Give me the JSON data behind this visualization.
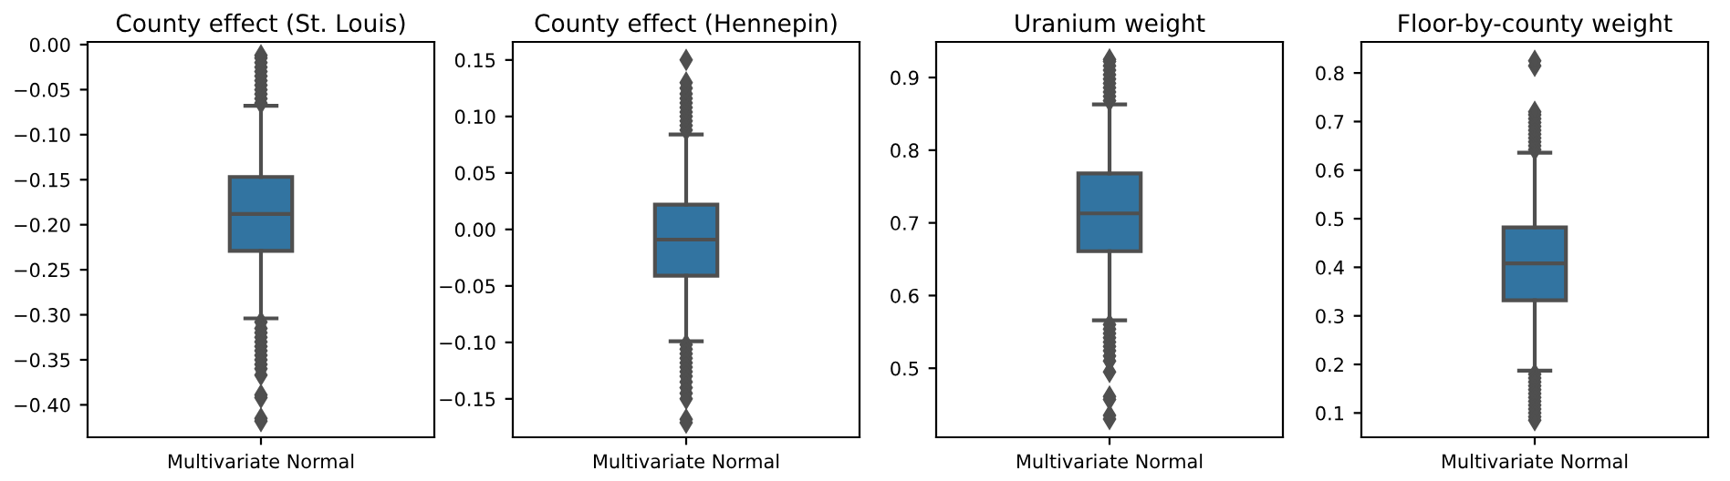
{
  "chart_data": [
    {
      "type": "box",
      "title": "County effect (St. Louis)",
      "categories": [
        "Multivariate Normal"
      ],
      "color": "#3274a1",
      "ylim": [
        -0.436,
        0.003
      ],
      "yticks": [
        {
          "value": 0,
          "label": "0.00"
        },
        {
          "value": -0.05,
          "label": "−0.05"
        },
        {
          "value": -0.1,
          "label": "−0.10"
        },
        {
          "value": -0.15,
          "label": "−0.15"
        },
        {
          "value": -0.2,
          "label": "−0.20"
        },
        {
          "value": -0.25,
          "label": "−0.25"
        },
        {
          "value": -0.3,
          "label": "−0.30"
        },
        {
          "value": -0.35,
          "label": "−0.35"
        },
        {
          "value": -0.4,
          "label": "−0.40"
        }
      ],
      "boxes": [
        {
          "low": -0.304,
          "q1": -0.229,
          "median": -0.188,
          "q3": -0.147,
          "high": -0.068,
          "outliers": [
            -0.065,
            -0.06,
            -0.055,
            -0.05,
            -0.045,
            -0.04,
            -0.035,
            -0.03,
            -0.025,
            -0.02,
            -0.015,
            -0.012,
            -0.308,
            -0.315,
            -0.32,
            -0.325,
            -0.33,
            -0.335,
            -0.34,
            -0.345,
            -0.35,
            -0.355,
            -0.36,
            -0.367,
            -0.389,
            -0.392,
            -0.415,
            -0.418
          ]
        }
      ]
    },
    {
      "type": "box",
      "title": "County effect (Hennepin)",
      "categories": [
        "Multivariate Normal"
      ],
      "color": "#3274a1",
      "ylim": [
        -0.184,
        0.166
      ],
      "yticks": [
        {
          "value": 0.15,
          "label": "0.15"
        },
        {
          "value": 0.1,
          "label": "0.10"
        },
        {
          "value": 0.05,
          "label": "0.05"
        },
        {
          "value": 0,
          "label": "0.00"
        },
        {
          "value": -0.05,
          "label": "−0.05"
        },
        {
          "value": -0.1,
          "label": "−0.10"
        },
        {
          "value": -0.15,
          "label": "−0.15"
        }
      ],
      "boxes": [
        {
          "low": -0.099,
          "q1": -0.041,
          "median": -0.009,
          "q3": 0.022,
          "high": 0.084,
          "outliers": [
            0.088,
            0.092,
            0.096,
            0.1,
            0.104,
            0.108,
            0.112,
            0.116,
            0.12,
            0.125,
            0.13,
            0.15,
            -0.102,
            -0.106,
            -0.11,
            -0.114,
            -0.118,
            -0.122,
            -0.126,
            -0.13,
            -0.135,
            -0.14,
            -0.145,
            -0.15,
            -0.168,
            -0.171
          ]
        }
      ]
    },
    {
      "type": "box",
      "title": "Uranium weight",
      "categories": [
        "Multivariate Normal"
      ],
      "color": "#3274a1",
      "ylim": [
        0.405,
        0.949
      ],
      "yticks": [
        {
          "value": 0.5,
          "label": "0.5"
        },
        {
          "value": 0.6,
          "label": "0.6"
        },
        {
          "value": 0.7,
          "label": "0.7"
        },
        {
          "value": 0.8,
          "label": "0.8"
        },
        {
          "value": 0.9,
          "label": "0.9"
        }
      ],
      "boxes": [
        {
          "low": 0.566,
          "q1": 0.661,
          "median": 0.713,
          "q3": 0.768,
          "high": 0.863,
          "outliers": [
            0.868,
            0.874,
            0.88,
            0.886,
            0.892,
            0.898,
            0.904,
            0.91,
            0.916,
            0.922,
            0.925,
            0.56,
            0.554,
            0.548,
            0.542,
            0.536,
            0.53,
            0.524,
            0.517,
            0.51,
            0.495,
            0.461,
            0.457,
            0.435,
            0.43
          ]
        }
      ]
    },
    {
      "type": "box",
      "title": "Floor-by-county weight",
      "categories": [
        "Multivariate Normal"
      ],
      "color": "#3274a1",
      "ylim": [
        0.05,
        0.864
      ],
      "yticks": [
        {
          "value": 0.1,
          "label": "0.1"
        },
        {
          "value": 0.2,
          "label": "0.2"
        },
        {
          "value": 0.3,
          "label": "0.3"
        },
        {
          "value": 0.4,
          "label": "0.4"
        },
        {
          "value": 0.5,
          "label": "0.5"
        },
        {
          "value": 0.6,
          "label": "0.6"
        },
        {
          "value": 0.7,
          "label": "0.7"
        },
        {
          "value": 0.8,
          "label": "0.8"
        }
      ],
      "boxes": [
        {
          "low": 0.187,
          "q1": 0.332,
          "median": 0.408,
          "q3": 0.482,
          "high": 0.636,
          "outliers": [
            0.642,
            0.65,
            0.658,
            0.666,
            0.674,
            0.682,
            0.69,
            0.698,
            0.706,
            0.714,
            0.72,
            0.815,
            0.825,
            0.18,
            0.172,
            0.164,
            0.156,
            0.148,
            0.14,
            0.132,
            0.124,
            0.116,
            0.108,
            0.1,
            0.092,
            0.085
          ]
        }
      ]
    }
  ]
}
